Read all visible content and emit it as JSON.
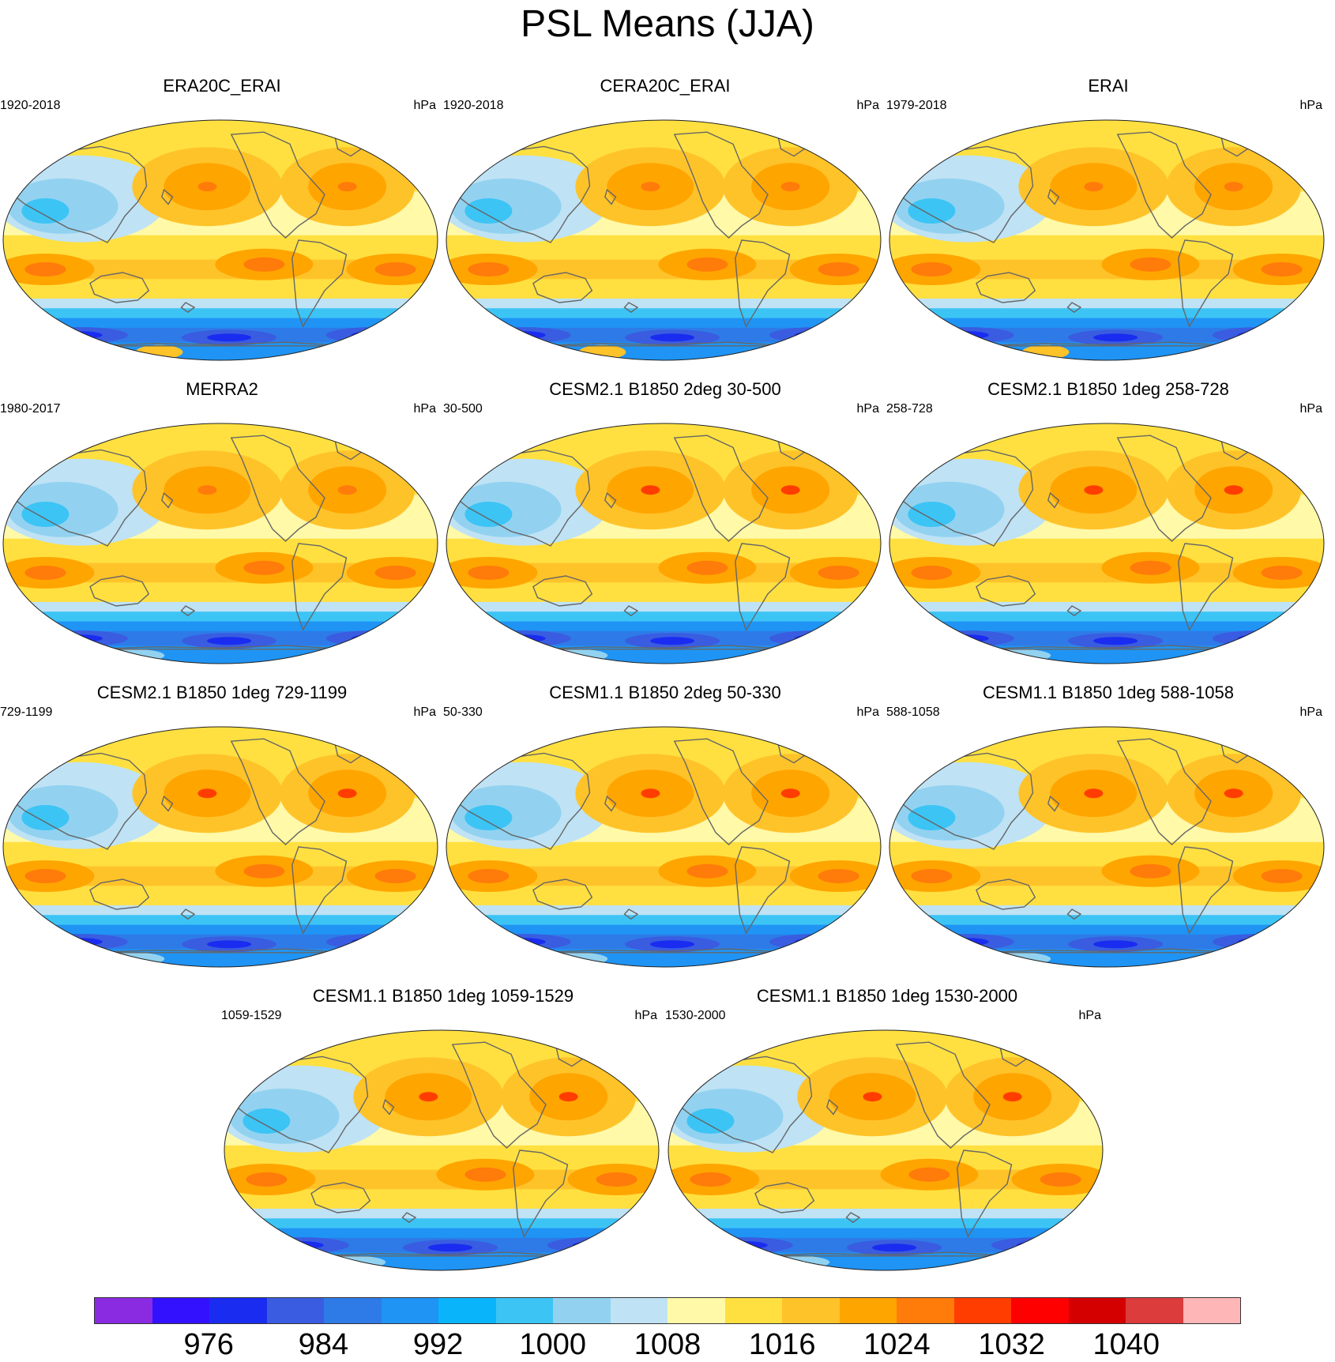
{
  "title": "PSL Means (JJA)",
  "panels": [
    {
      "title": "ERA20C_ERAI",
      "left": "1920-2018",
      "right": "hPa",
      "variant": "reanalysis"
    },
    {
      "title": "CERA20C_ERAI",
      "left": "1920-2018",
      "right": "hPa",
      "variant": "reanalysis"
    },
    {
      "title": "ERAI",
      "left": "1979-2018",
      "right": "hPa",
      "variant": "reanalysis"
    },
    {
      "title": "MERRA2",
      "left": "1980-2017",
      "right": "hPa",
      "variant": "merra"
    },
    {
      "title": "CESM2.1 B1850 2deg 30-500",
      "left": "30-500",
      "right": "hPa",
      "variant": "model"
    },
    {
      "title": "CESM2.1 B1850 1deg 258-728",
      "left": "258-728",
      "right": "hPa",
      "variant": "model"
    },
    {
      "title": "CESM2.1 B1850 1deg 729-1199",
      "left": "729-1199",
      "right": "hPa",
      "variant": "model"
    },
    {
      "title": "CESM1.1 B1850 2deg 50-330",
      "left": "50-330",
      "right": "hPa",
      "variant": "model"
    },
    {
      "title": "CESM1.1 B1850 1deg 588-1058",
      "left": "588-1058",
      "right": "hPa",
      "variant": "model"
    },
    {
      "title": "CESM1.1 B1850 1deg 1059-1529",
      "left": "1059-1529",
      "right": "hPa",
      "variant": "model"
    },
    {
      "title": "CESM1.1 B1850 1deg 1530-2000",
      "left": "1530-2000",
      "right": "hPa",
      "variant": "model"
    }
  ],
  "colorbar": {
    "colors": [
      "#8a2be2",
      "#3311ff",
      "#1a2cf0",
      "#3a5ce0",
      "#2e7be8",
      "#1f94f5",
      "#0ab4fa",
      "#3cc4f5",
      "#92d2f0",
      "#bfe2f5",
      "#fff9a8",
      "#ffe040",
      "#ffc32a",
      "#ffa500",
      "#ff7b0a",
      "#ff3d00",
      "#ff0000",
      "#d40000",
      "#dc3c3c",
      "#ffb6b6"
    ],
    "labels": [
      "976",
      "984",
      "992",
      "1000",
      "1008",
      "1016",
      "1024",
      "1032",
      "1040"
    ]
  }
}
